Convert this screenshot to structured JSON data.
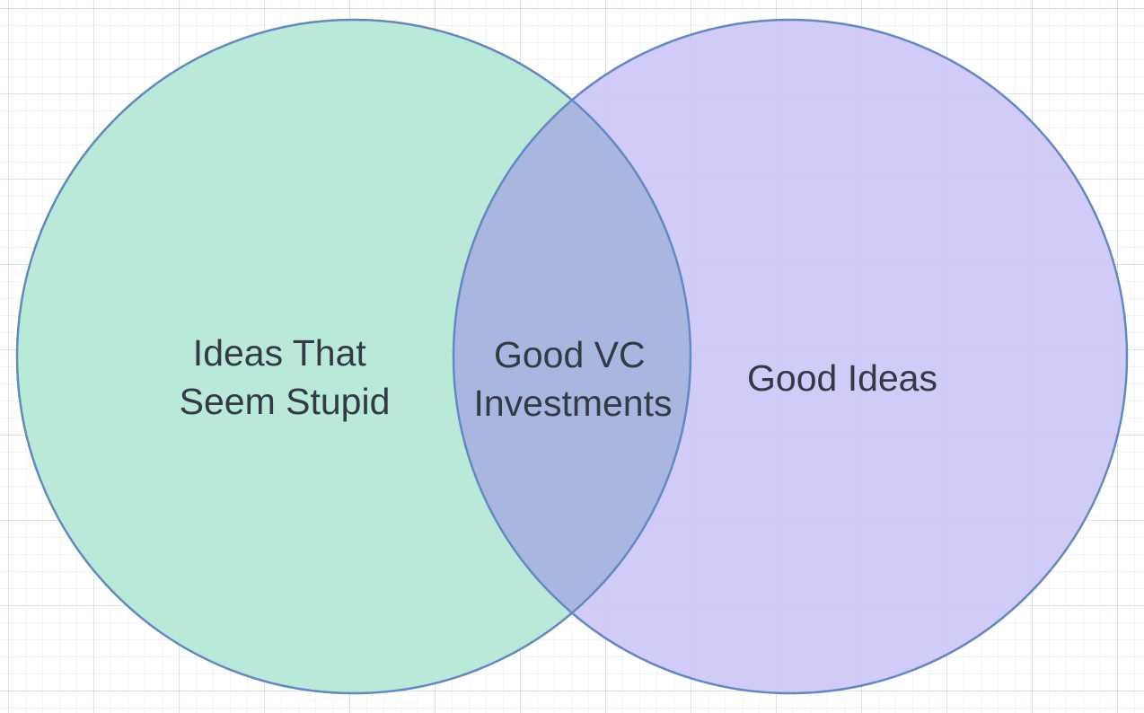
{
  "diagram": {
    "type": "venn",
    "sets": [
      {
        "id": "left",
        "label_lines": [
          "Ideas That",
          "Seem Stupid"
        ],
        "fill": "#b3e8d6",
        "stroke": "#6389c0"
      },
      {
        "id": "right",
        "label_lines": [
          "Good Ideas"
        ],
        "fill": "#cdc7f6",
        "stroke": "#6389c0"
      }
    ],
    "intersection": {
      "label_lines": [
        "Good VC",
        "Investments"
      ],
      "fill": "#a9b7e0"
    }
  }
}
